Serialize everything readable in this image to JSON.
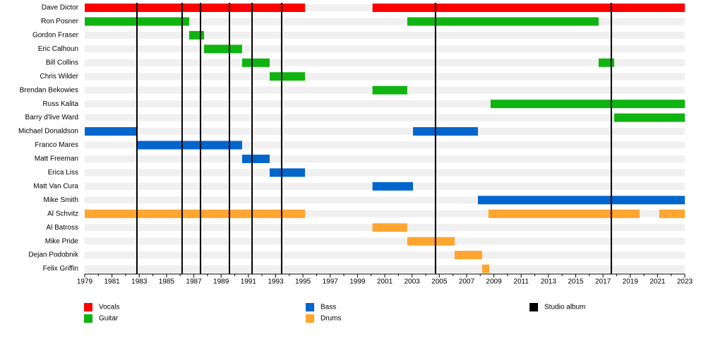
{
  "chart_data": {
    "type": "timeline",
    "categories": [
      "Dave Dictor",
      "Ron Posner",
      "Gordon Fraser",
      "Eric Calhoun",
      "Bill Collins",
      "Chris Wilder",
      "Brendan Bekowies",
      "Russ Kalita",
      "Barry d'live Ward",
      "Michael Donaldson",
      "Franco Mares",
      "Matt Freeman",
      "Erica Liss",
      "Matt Van Cura",
      "Mike Smith",
      "Al Schvitz",
      "Al Batross",
      "Mike Pride",
      "Dejan Podobnik",
      "Felix Griffin"
    ],
    "xlim": [
      1979,
      2023
    ],
    "xticks": [
      1979,
      1981,
      1983,
      1985,
      1987,
      1989,
      1991,
      1993,
      1995,
      1997,
      1999,
      2001,
      2003,
      2005,
      2007,
      2009,
      2011,
      2013,
      2015,
      2017,
      2019,
      2021,
      2023
    ],
    "series": [
      {
        "name": "Vocals",
        "color": "#ff0000",
        "members": [
          "Dave Dictor",
          "Dave Dictor"
        ],
        "start": [
          1979,
          2000.1
        ],
        "end": [
          1995.15,
          2023
        ]
      },
      {
        "name": "Guitar",
        "color": "#10b410",
        "members": [
          "Ron Posner",
          "Ron Posner",
          "Gordon Fraser",
          "Eric Calhoun",
          "Bill Collins",
          "Bill Collins",
          "Chris Wilder",
          "Brendan Bekowies",
          "Russ Kalita",
          "Barry d'live Ward"
        ],
        "start": [
          1979,
          2002.65,
          1986.66,
          1987.75,
          1990.54,
          2016.68,
          1992.56,
          2000.1,
          2008.76,
          2017.82
        ],
        "end": [
          1986.66,
          2016.68,
          1987.75,
          1990.54,
          1992.56,
          2017.82,
          1995.15,
          2002.65,
          2023,
          2023
        ]
      },
      {
        "name": "Bass",
        "color": "#0066cc",
        "members": [
          "Michael Donaldson",
          "Michael Donaldson",
          "Franco Mares",
          "Matt Freeman",
          "Erica Liss",
          "Matt Van Cura",
          "Mike Smith"
        ],
        "start": [
          1979,
          2003.07,
          1982.83,
          1990.54,
          1992.56,
          2000.1,
          2007.83
        ],
        "end": [
          1982.83,
          2007.83,
          1990.54,
          1992.56,
          1995.15,
          2003.07,
          2023
        ]
      },
      {
        "name": "Drums",
        "color": "#ffa530",
        "members": [
          "Al Schvitz",
          "Al Schvitz",
          "Al Schvitz",
          "Al Batross",
          "Mike Pride",
          "Dejan Podobnik",
          "Felix Griffin"
        ],
        "start": [
          1979,
          2008.6,
          2021.13,
          2000.1,
          2002.65,
          2006.12,
          2008.14
        ],
        "end": [
          1995.15,
          2019.68,
          2023,
          2002.65,
          2006.12,
          2008.14,
          2008.66
        ]
      }
    ],
    "events": {
      "name": "Studio album",
      "color": "#000000",
      "x": [
        1982.83,
        1986.14,
        1987.49,
        1989.61,
        1991.27,
        1993.44,
        2004.72,
        2017.61
      ]
    }
  }
}
